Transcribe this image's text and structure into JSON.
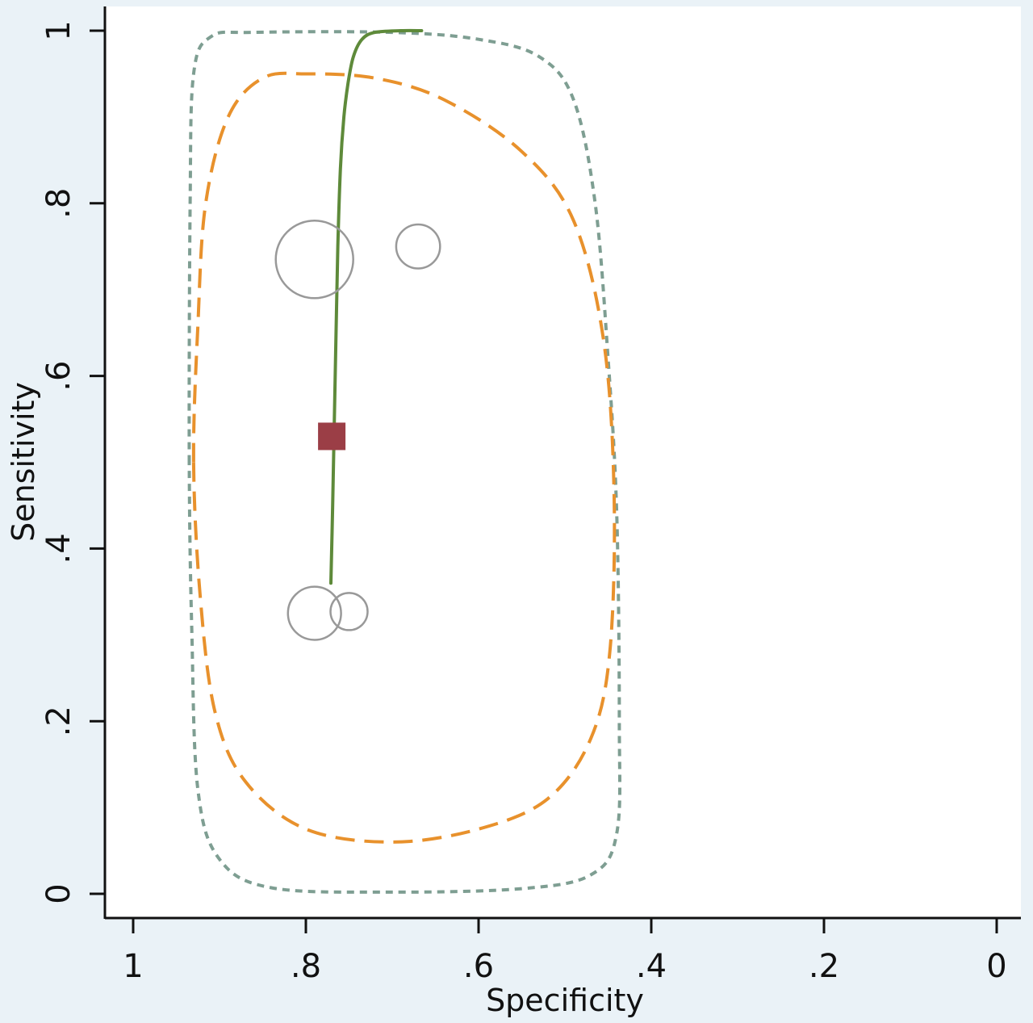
{
  "chart_data": {
    "type": "scatter",
    "title": "",
    "xlabel": "Specificity",
    "ylabel": "Sensitivity",
    "x_reversed": true,
    "xlim": [
      1,
      0
    ],
    "ylim": [
      0,
      1
    ],
    "x_ticks": [
      {
        "value": 1,
        "label": "1"
      },
      {
        "value": 0.8,
        "label": ".8"
      },
      {
        "value": 0.6,
        "label": ".6"
      },
      {
        "value": 0.4,
        "label": ".4"
      },
      {
        "value": 0.2,
        "label": ".2"
      },
      {
        "value": 0,
        "label": "0"
      }
    ],
    "y_ticks": [
      {
        "value": 0,
        "label": "0"
      },
      {
        "value": 0.2,
        "label": ".2"
      },
      {
        "value": 0.4,
        "label": ".4"
      },
      {
        "value": 0.6,
        "label": ".6"
      },
      {
        "value": 0.8,
        "label": ".8"
      },
      {
        "value": 1,
        "label": "1"
      }
    ],
    "grid": false,
    "legend": "none",
    "study_points": [
      {
        "specificity": 0.79,
        "sensitivity": 0.735,
        "weight": 1.0
      },
      {
        "specificity": 0.67,
        "sensitivity": 0.75,
        "weight": 0.32
      },
      {
        "specificity": 0.79,
        "sensitivity": 0.325,
        "weight": 0.47
      },
      {
        "specificity": 0.75,
        "sensitivity": 0.327,
        "weight": 0.23
      }
    ],
    "summary_point": {
      "specificity": 0.77,
      "sensitivity": 0.53
    },
    "sroc_curve": [
      {
        "specificity": 0.771,
        "sensitivity": 0.36
      },
      {
        "specificity": 0.769,
        "sensitivity": 0.45
      },
      {
        "specificity": 0.767,
        "sensitivity": 0.55
      },
      {
        "specificity": 0.765,
        "sensitivity": 0.65
      },
      {
        "specificity": 0.763,
        "sensitivity": 0.75
      },
      {
        "specificity": 0.76,
        "sensitivity": 0.84
      },
      {
        "specificity": 0.756,
        "sensitivity": 0.9
      },
      {
        "specificity": 0.751,
        "sensitivity": 0.94
      },
      {
        "specificity": 0.745,
        "sensitivity": 0.97
      },
      {
        "specificity": 0.735,
        "sensitivity": 0.99
      },
      {
        "specificity": 0.72,
        "sensitivity": 0.998
      },
      {
        "specificity": 0.69,
        "sensitivity": 1.0
      },
      {
        "specificity": 0.666,
        "sensitivity": 1.0
      }
    ],
    "confidence_region": [
      {
        "specificity": 0.93,
        "sensitivity": 0.5
      },
      {
        "specificity": 0.925,
        "sensitivity": 0.66
      },
      {
        "specificity": 0.916,
        "sensitivity": 0.8
      },
      {
        "specificity": 0.89,
        "sensitivity": 0.9
      },
      {
        "specificity": 0.85,
        "sensitivity": 0.945
      },
      {
        "specificity": 0.8,
        "sensitivity": 0.95
      },
      {
        "specificity": 0.72,
        "sensitivity": 0.945
      },
      {
        "specificity": 0.64,
        "sensitivity": 0.92
      },
      {
        "specificity": 0.55,
        "sensitivity": 0.86
      },
      {
        "specificity": 0.49,
        "sensitivity": 0.78
      },
      {
        "specificity": 0.455,
        "sensitivity": 0.64
      },
      {
        "specificity": 0.443,
        "sensitivity": 0.46
      },
      {
        "specificity": 0.448,
        "sensitivity": 0.28
      },
      {
        "specificity": 0.47,
        "sensitivity": 0.18
      },
      {
        "specificity": 0.52,
        "sensitivity": 0.11
      },
      {
        "specificity": 0.6,
        "sensitivity": 0.075
      },
      {
        "specificity": 0.7,
        "sensitivity": 0.06
      },
      {
        "specificity": 0.8,
        "sensitivity": 0.075
      },
      {
        "specificity": 0.87,
        "sensitivity": 0.13
      },
      {
        "specificity": 0.905,
        "sensitivity": 0.21
      },
      {
        "specificity": 0.922,
        "sensitivity": 0.34
      }
    ],
    "prediction_region": [
      {
        "specificity": 0.935,
        "sensitivity": 0.5
      },
      {
        "specificity": 0.934,
        "sensitivity": 0.8
      },
      {
        "specificity": 0.93,
        "sensitivity": 0.95
      },
      {
        "specificity": 0.91,
        "sensitivity": 0.993
      },
      {
        "specificity": 0.86,
        "sensitivity": 0.998
      },
      {
        "specificity": 0.7,
        "sensitivity": 0.998
      },
      {
        "specificity": 0.6,
        "sensitivity": 0.99
      },
      {
        "specificity": 0.53,
        "sensitivity": 0.97
      },
      {
        "specificity": 0.49,
        "sensitivity": 0.92
      },
      {
        "specificity": 0.465,
        "sensitivity": 0.8
      },
      {
        "specificity": 0.45,
        "sensitivity": 0.62
      },
      {
        "specificity": 0.44,
        "sensitivity": 0.44
      },
      {
        "specificity": 0.437,
        "sensitivity": 0.2
      },
      {
        "specificity": 0.44,
        "sensitivity": 0.07
      },
      {
        "specificity": 0.47,
        "sensitivity": 0.022
      },
      {
        "specificity": 0.55,
        "sensitivity": 0.006
      },
      {
        "specificity": 0.7,
        "sensitivity": 0.002
      },
      {
        "specificity": 0.84,
        "sensitivity": 0.007
      },
      {
        "specificity": 0.9,
        "sensitivity": 0.04
      },
      {
        "specificity": 0.925,
        "sensitivity": 0.12
      },
      {
        "specificity": 0.932,
        "sensitivity": 0.3
      }
    ],
    "colors": {
      "background": "#eaf2f7",
      "plot_area": "#ffffff",
      "axis": "#111111",
      "study_points": "#999999",
      "summary_point": "#9b3e46",
      "sroc_curve": "#5e8a3a",
      "confidence_region": "#e8912c",
      "prediction_region": "#7e9e92"
    }
  }
}
